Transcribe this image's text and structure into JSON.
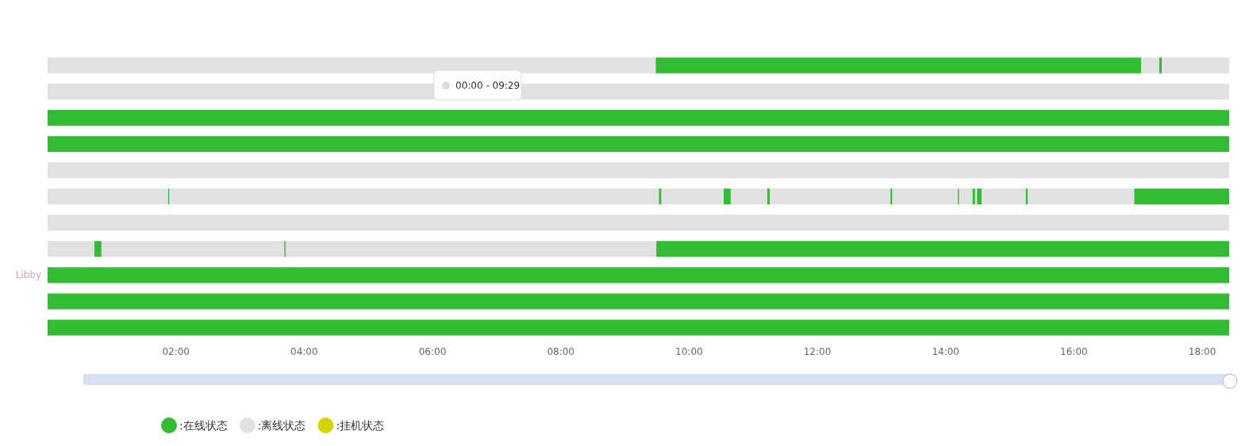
{
  "chart_data": {
    "type": "bar",
    "orientation": "horizontal",
    "stacked": true,
    "categories": [
      null,
      null,
      null,
      null,
      null,
      null,
      null,
      null,
      "Libby",
      null,
      null
    ],
    "xlim": [
      0,
      18.42
    ],
    "xticks": [
      {
        "value": 2,
        "label": "02:00"
      },
      {
        "value": 4,
        "label": "04:00"
      },
      {
        "value": 6,
        "label": "06:00"
      },
      {
        "value": 8,
        "label": "08:00"
      },
      {
        "value": 10,
        "label": "10:00"
      },
      {
        "value": 12,
        "label": "12:00"
      },
      {
        "value": 14,
        "label": "14:00"
      },
      {
        "value": 16,
        "label": "16:00"
      },
      {
        "value": 18,
        "label": "18:00"
      }
    ],
    "legend": "bottom left",
    "annotations": [
      "00:00 - 09:29"
    ],
    "series": [
      {
        "name": ":在线状态",
        "color": "#33bb33",
        "values": [
          0,
          0,
          18.42,
          18.42,
          0,
          0,
          0,
          0,
          18.42,
          18.42,
          18.42
        ]
      },
      {
        "name": ":离线状态",
        "color": "#e1e1e1",
        "values": [
          9.48,
          18.42,
          null,
          null,
          18.42,
          1.88,
          18.42,
          0.73,
          null,
          null,
          null
        ]
      },
      {
        "color": "#33bb33",
        "values": [
          7.57,
          null,
          null,
          null,
          null,
          0.02,
          null,
          0.11,
          null,
          null,
          null
        ]
      },
      {
        "color": "#e1e1e1",
        "values": [
          0.28,
          null,
          null,
          null,
          null,
          7.63,
          null,
          2.85,
          null,
          null,
          null
        ]
      },
      {
        "color": "#33bb33",
        "values": [
          0.04,
          null,
          null,
          null,
          null,
          0.04,
          null,
          0.02,
          null,
          null,
          null
        ]
      },
      {
        "color": "#e1e1e1",
        "values": [
          1.05,
          null,
          null,
          null,
          null,
          0.97,
          null,
          5.78,
          null,
          null,
          null
        ]
      },
      {
        "color": "#33bb33",
        "values": [
          null,
          null,
          null,
          null,
          null,
          0.11,
          null,
          8.93,
          null,
          null,
          null
        ]
      },
      {
        "color": "#e1e1e1",
        "values": [
          null,
          null,
          null,
          null,
          null,
          0.57,
          null,
          null,
          null,
          null,
          null
        ]
      },
      {
        "color": "#33bb33",
        "values": [
          null,
          null,
          null,
          null,
          null,
          0.04,
          null,
          null,
          null,
          null,
          null
        ]
      },
      {
        "color": "#e1e1e1",
        "values": [
          null,
          null,
          null,
          null,
          null,
          1.88,
          null,
          null,
          null,
          null,
          null
        ]
      },
      {
        "color": "#33bb33",
        "values": [
          null,
          null,
          null,
          null,
          null,
          0.03,
          null,
          null,
          null,
          null,
          null
        ]
      },
      {
        "color": "#e1e1e1",
        "values": [
          null,
          null,
          null,
          null,
          null,
          1.02,
          null,
          null,
          null,
          null,
          null
        ]
      },
      {
        "color": "#33bb33",
        "values": [
          null,
          null,
          null,
          null,
          null,
          0.02,
          null,
          null,
          null,
          null,
          null
        ]
      },
      {
        "color": "#e1e1e1",
        "values": [
          null,
          null,
          null,
          null,
          null,
          0.21,
          null,
          null,
          null,
          null,
          null
        ]
      },
      {
        "color": "#33bb33",
        "values": [
          null,
          null,
          null,
          null,
          null,
          0.04,
          null,
          null,
          null,
          null,
          null
        ]
      },
      {
        "color": "#e1e1e1",
        "values": [
          null,
          null,
          null,
          null,
          null,
          0.03,
          null,
          null,
          null,
          null,
          null
        ]
      },
      {
        "color": "#33bb33",
        "values": [
          null,
          null,
          null,
          null,
          null,
          0.07,
          null,
          null,
          null,
          null,
          null
        ]
      },
      {
        "color": "#e1e1e1",
        "values": [
          null,
          null,
          null,
          null,
          null,
          0.69,
          null,
          null,
          null,
          null,
          null
        ]
      },
      {
        "color": "#33bb33",
        "values": [
          null,
          null,
          null,
          null,
          null,
          0.03,
          null,
          null,
          null,
          null,
          null
        ]
      },
      {
        "color": "#e1e1e1",
        "values": [
          null,
          null,
          null,
          null,
          null,
          1.66,
          null,
          null,
          null,
          null,
          null
        ]
      },
      {
        "color": "#33bb33",
        "values": [
          null,
          null,
          null,
          null,
          null,
          1.48,
          null,
          null,
          null,
          null,
          null
        ]
      },
      {
        "name": ":挂机状态",
        "color": "#d4d400",
        "values": [
          null,
          null,
          null,
          null,
          null,
          null,
          null,
          null,
          null,
          null,
          null
        ]
      }
    ]
  }
}
